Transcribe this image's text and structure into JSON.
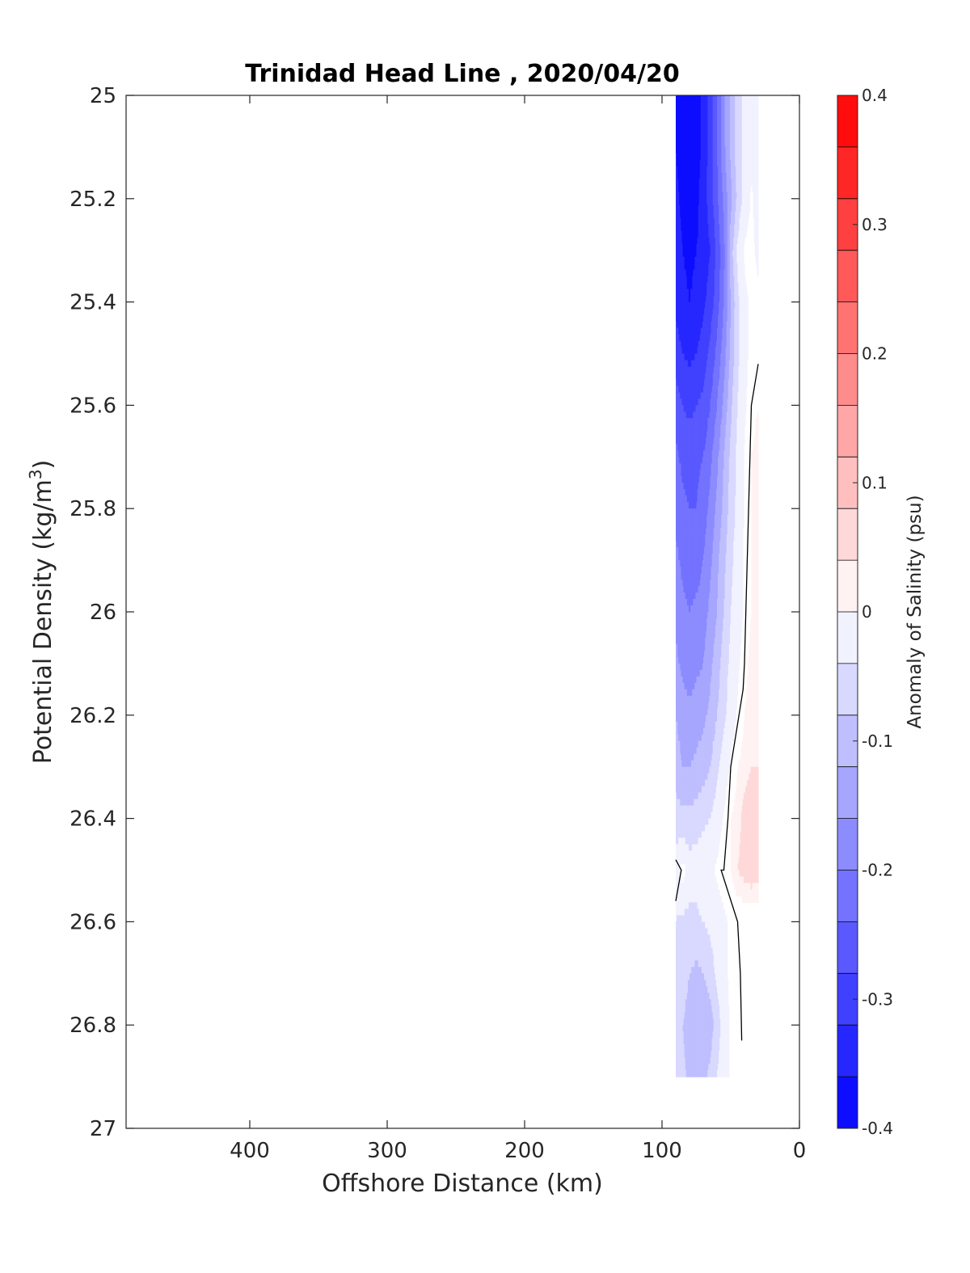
{
  "chart_data": {
    "type": "heatmap",
    "subtype": "filled-contour section",
    "title": "Trinidad Head Line , 2020/04/20",
    "xlabel": "Offshore Distance (km)",
    "ylabel": "Potential Density (kg/m",
    "ylabel_superscript": "3",
    "ylabel_close": ")",
    "colorbar_label": "Anomaly of Salinity (psu)",
    "xlim": [
      490,
      0
    ],
    "x_reversed": true,
    "xticks": [
      400,
      300,
      200,
      100,
      0
    ],
    "xtick_labels": [
      "400",
      "300",
      "200",
      "100",
      "0"
    ],
    "ylim": [
      25,
      27
    ],
    "y_reversed": true,
    "yticks": [
      25,
      25.2,
      25.4,
      25.6,
      25.8,
      26,
      26.2,
      26.4,
      26.6,
      26.8,
      27
    ],
    "ytick_labels": [
      "25",
      "25.2",
      "25.4",
      "25.6",
      "25.8",
      "26",
      "26.2",
      "26.4",
      "26.6",
      "26.8",
      "27"
    ],
    "clim": [
      -0.4,
      0.4
    ],
    "colorbar_levels": 20,
    "colorbar_ticks": [
      -0.4,
      -0.3,
      -0.2,
      -0.1,
      0,
      0.1,
      0.2,
      0.3,
      0.4
    ],
    "colorbar_tick_labels": [
      "-0.4",
      "-0.3",
      "-0.2",
      "-0.1",
      "0",
      "0.1",
      "0.2",
      "0.3",
      "0.4"
    ],
    "colormap": {
      "low": "#0000ff",
      "mid": "#ffffff",
      "high": "#ff0000"
    },
    "grid": false,
    "data_extent": {
      "x": [
        30,
        90
      ],
      "y": [
        25,
        26.9
      ]
    },
    "field_x": [
      90,
      85,
      80,
      75,
      70,
      65,
      60,
      55,
      50,
      45,
      40,
      35,
      30
    ],
    "field_y": [
      25.0,
      25.1,
      25.2,
      25.3,
      25.4,
      25.5,
      25.6,
      25.7,
      25.8,
      25.9,
      26.0,
      26.1,
      26.2,
      26.3,
      26.4,
      26.5,
      26.6,
      26.7,
      26.8,
      26.9
    ],
    "field_values": [
      [
        -0.36,
        -0.38,
        -0.39,
        -0.38,
        -0.35,
        -0.3,
        -0.24,
        -0.17,
        -0.11,
        -0.06,
        -0.03,
        -0.02,
        -0.02
      ],
      [
        -0.36,
        -0.38,
        -0.39,
        -0.38,
        -0.35,
        -0.3,
        -0.24,
        -0.17,
        -0.11,
        -0.06,
        -0.03,
        -0.02,
        -0.02
      ],
      [
        -0.35,
        -0.37,
        -0.38,
        -0.37,
        -0.34,
        -0.3,
        -0.25,
        -0.19,
        -0.13,
        -0.07,
        -0.02,
        0.0,
        -0.02
      ],
      [
        -0.34,
        -0.36,
        -0.37,
        -0.36,
        -0.35,
        -0.32,
        -0.27,
        -0.21,
        -0.1,
        -0.03,
        0.0,
        0.0,
        -0.01
      ],
      [
        -0.33,
        -0.35,
        -0.36,
        -0.35,
        -0.33,
        -0.3,
        -0.26,
        -0.2,
        -0.12,
        -0.05,
        -0.01,
        0.0,
        0.0
      ],
      [
        -0.3,
        -0.32,
        -0.33,
        -0.32,
        -0.3,
        -0.27,
        -0.23,
        -0.18,
        -0.11,
        -0.05,
        -0.01,
        0.0,
        0.0
      ],
      [
        -0.26,
        -0.28,
        -0.29,
        -0.28,
        -0.27,
        -0.24,
        -0.2,
        -0.15,
        -0.09,
        -0.04,
        -0.01,
        0.01,
        0.02
      ],
      [
        -0.23,
        -0.25,
        -0.26,
        -0.25,
        -0.24,
        -0.21,
        -0.17,
        -0.12,
        -0.07,
        -0.03,
        0.0,
        0.02,
        0.03
      ],
      [
        -0.21,
        -0.23,
        -0.24,
        -0.24,
        -0.22,
        -0.19,
        -0.15,
        -0.11,
        -0.06,
        -0.03,
        0.0,
        0.02,
        0.03
      ],
      [
        -0.19,
        -0.21,
        -0.22,
        -0.22,
        -0.2,
        -0.17,
        -0.13,
        -0.09,
        -0.05,
        -0.02,
        0.0,
        0.02,
        0.03
      ],
      [
        -0.17,
        -0.19,
        -0.2,
        -0.19,
        -0.18,
        -0.15,
        -0.12,
        -0.08,
        -0.04,
        -0.02,
        0.0,
        0.02,
        0.03
      ],
      [
        -0.15,
        -0.17,
        -0.18,
        -0.17,
        -0.16,
        -0.13,
        -0.1,
        -0.06,
        -0.03,
        -0.01,
        0.01,
        0.03,
        0.03
      ],
      [
        -0.12,
        -0.14,
        -0.15,
        -0.14,
        -0.13,
        -0.11,
        -0.08,
        -0.05,
        -0.02,
        0.0,
        0.02,
        0.03,
        0.04
      ],
      [
        -0.1,
        -0.12,
        -0.12,
        -0.11,
        -0.1,
        -0.08,
        -0.05,
        -0.02,
        0.0,
        0.02,
        0.03,
        0.04,
        0.04
      ],
      [
        -0.06,
        -0.07,
        -0.07,
        -0.06,
        -0.05,
        -0.04,
        -0.02,
        0.0,
        0.02,
        0.03,
        0.05,
        0.06,
        0.05
      ],
      [
        -0.02,
        0.01,
        -0.02,
        -0.02,
        -0.01,
        -0.01,
        0.0,
        0.01,
        0.02,
        0.04,
        0.05,
        0.06,
        0.05
      ],
      [
        -0.04,
        -0.05,
        -0.05,
        -0.05,
        -0.04,
        -0.03,
        -0.02,
        -0.01,
        0.0,
        0.0,
        0.0,
        0.0,
        0.0
      ],
      [
        -0.05,
        -0.06,
        -0.08,
        -0.09,
        -0.08,
        -0.06,
        -0.03,
        -0.01,
        0.0,
        0.0,
        0.0,
        0.0,
        0.0
      ],
      [
        -0.06,
        -0.08,
        -0.1,
        -0.11,
        -0.12,
        -0.1,
        -0.06,
        -0.02,
        0.0,
        0.0,
        0.0,
        0.0,
        0.0
      ],
      [
        -0.05,
        -0.07,
        -0.09,
        -0.1,
        -0.09,
        -0.07,
        -0.04,
        -0.02,
        0.0,
        0.0,
        0.0,
        0.0,
        0.0
      ]
    ],
    "zero_contours": [
      {
        "x": [
          30,
          35,
          37,
          38,
          39,
          40,
          41,
          44,
          50,
          52,
          55,
          57,
          45,
          43,
          42
        ],
        "y": [
          25.52,
          25.6,
          25.8,
          25.9,
          26.0,
          26.1,
          26.15,
          26.2,
          26.3,
          26.4,
          26.5,
          26.5,
          26.6,
          26.7,
          26.83
        ]
      },
      {
        "x": [
          90,
          86,
          90
        ],
        "y": [
          26.48,
          26.5,
          26.56
        ]
      }
    ]
  }
}
